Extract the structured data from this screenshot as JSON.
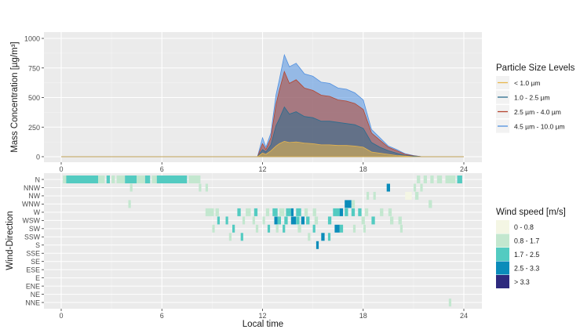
{
  "chart_data": [
    {
      "type": "area",
      "ylabel": "Mass Concentration [µg/m³]",
      "xlim": [
        0,
        24
      ],
      "ylim": [
        0,
        1000
      ],
      "x_ticks": [
        "0",
        "6",
        "12",
        "18",
        "24"
      ],
      "y_ticks": [
        "0",
        "250",
        "500",
        "750",
        "1000"
      ],
      "legend_title": "Particle Size Levels",
      "legend_position": "right",
      "series": [
        {
          "name": "< 1.0 µm",
          "color": "#e8b64c",
          "x": [
            0,
            11.7,
            12.0,
            12.2,
            12.5,
            12.8,
            13.0,
            13.3,
            13.6,
            14.0,
            14.5,
            15.0,
            15.5,
            16.0,
            16.5,
            17.0,
            17.5,
            18.0,
            18.5,
            19.0,
            19.5,
            20.0,
            20.5,
            21.0,
            21.5,
            24
          ],
          "values": [
            0,
            0,
            30,
            20,
            50,
            90,
            110,
            130,
            120,
            125,
            115,
            110,
            100,
            100,
            95,
            95,
            90,
            80,
            40,
            30,
            20,
            10,
            5,
            0,
            0,
            0
          ]
        },
        {
          "name": "1.0 - 2.5 µm",
          "color": "#2b6c8e",
          "x": [
            0,
            11.7,
            12.0,
            12.2,
            12.5,
            12.8,
            13.0,
            13.3,
            13.6,
            14.0,
            14.5,
            15.0,
            15.5,
            16.0,
            16.5,
            17.0,
            17.5,
            18.0,
            18.5,
            19.0,
            19.5,
            20.0,
            20.5,
            21.0,
            21.5,
            24
          ],
          "values": [
            0,
            0,
            60,
            40,
            100,
            260,
            320,
            420,
            360,
            380,
            340,
            330,
            300,
            300,
            290,
            280,
            270,
            240,
            120,
            80,
            50,
            30,
            10,
            5,
            0,
            0
          ]
        },
        {
          "name": "2.5 µm - 4.0 µm",
          "color": "#b5452f",
          "x": [
            0,
            11.7,
            12.0,
            12.2,
            12.5,
            12.8,
            13.0,
            13.3,
            13.6,
            14.0,
            14.5,
            15.0,
            15.5,
            16.0,
            16.5,
            17.0,
            17.5,
            18.0,
            18.5,
            19.0,
            19.5,
            20.0,
            20.5,
            21.0,
            21.5,
            24
          ],
          "values": [
            0,
            0,
            110,
            60,
            160,
            440,
            560,
            720,
            620,
            650,
            580,
            560,
            520,
            510,
            480,
            470,
            450,
            400,
            200,
            140,
            80,
            50,
            20,
            8,
            0,
            0
          ]
        },
        {
          "name": "4.5 µm - 10.0 µm",
          "color": "#4f8fe0",
          "x": [
            0,
            11.7,
            12.0,
            12.2,
            12.5,
            12.8,
            13.0,
            13.3,
            13.6,
            14.0,
            14.5,
            15.0,
            15.5,
            16.0,
            16.5,
            17.0,
            17.5,
            18.0,
            18.5,
            19.0,
            19.5,
            20.0,
            20.5,
            21.0,
            21.5,
            24
          ],
          "values": [
            0,
            0,
            160,
            80,
            200,
            520,
            650,
            860,
            760,
            790,
            700,
            680,
            630,
            620,
            580,
            570,
            540,
            480,
            230,
            160,
            90,
            60,
            25,
            10,
            0,
            0
          ]
        }
      ]
    },
    {
      "type": "heatmap",
      "xlabel": "Local time",
      "ylabel": "Wind-Direction",
      "xlim": [
        0,
        24
      ],
      "x_ticks": [
        "0",
        "6",
        "12",
        "18",
        "24"
      ],
      "categories": [
        "N",
        "NNW",
        "NW",
        "WNW",
        "W",
        "WSW",
        "SW",
        "SSW",
        "S",
        "SSE",
        "SE",
        "ESE",
        "E",
        "ENE",
        "NE",
        "NNE"
      ],
      "legend_title": "Wind speed [m/s]",
      "legend_position": "right",
      "legend_entries": [
        {
          "label": "0 - 0.8",
          "color": "#f4f6e4"
        },
        {
          "label": "0.8 - 1.7",
          "color": "#c3e7cf"
        },
        {
          "label": "1.7 - 2.5",
          "color": "#53cbc1"
        },
        {
          "label": "2.5 - 3.3",
          "color": "#0a8cba"
        },
        {
          "label": "> 3.3",
          "color": "#2e2a7e"
        }
      ],
      "cells": [
        {
          "direction": "N",
          "start": 0.1,
          "end": 0.3,
          "speed_class": "0.8 - 1.7"
        },
        {
          "direction": "N",
          "start": 0.3,
          "end": 2.2,
          "speed_class": "1.7 - 2.5"
        },
        {
          "direction": "N",
          "start": 2.2,
          "end": 2.6,
          "speed_class": "0.8 - 1.7"
        },
        {
          "direction": "N",
          "start": 2.7,
          "end": 2.9,
          "speed_class": "1.7 - 2.5"
        },
        {
          "direction": "N",
          "start": 3.0,
          "end": 3.2,
          "speed_class": "0.8 - 1.7"
        },
        {
          "direction": "N",
          "start": 3.3,
          "end": 3.8,
          "speed_class": "0.8 - 1.7"
        },
        {
          "direction": "N",
          "start": 3.8,
          "end": 4.5,
          "speed_class": "1.7 - 2.5"
        },
        {
          "direction": "N",
          "start": 4.5,
          "end": 5.0,
          "speed_class": "0.8 - 1.7"
        },
        {
          "direction": "N",
          "start": 5.0,
          "end": 5.3,
          "speed_class": "1.7 - 2.5"
        },
        {
          "direction": "N",
          "start": 5.4,
          "end": 5.7,
          "speed_class": "0.8 - 1.7"
        },
        {
          "direction": "N",
          "start": 5.7,
          "end": 7.5,
          "speed_class": "1.7 - 2.5"
        },
        {
          "direction": "N",
          "start": 7.6,
          "end": 8.3,
          "speed_class": "0.8 - 1.7"
        },
        {
          "direction": "N",
          "start": 21.2,
          "end": 21.4,
          "speed_class": "0.8 - 1.7"
        },
        {
          "direction": "N",
          "start": 21.6,
          "end": 21.8,
          "speed_class": "0.8 - 1.7"
        },
        {
          "direction": "N",
          "start": 22.0,
          "end": 22.2,
          "speed_class": "0.8 - 1.7"
        },
        {
          "direction": "N",
          "start": 22.4,
          "end": 22.7,
          "speed_class": "0.8 - 1.7"
        },
        {
          "direction": "N",
          "start": 22.9,
          "end": 23.5,
          "speed_class": "0.8 - 1.7"
        },
        {
          "direction": "N",
          "start": 23.6,
          "end": 23.9,
          "speed_class": "1.7 - 2.5"
        },
        {
          "direction": "NNW",
          "start": 4.1,
          "end": 4.25,
          "speed_class": "0.8 - 1.7"
        },
        {
          "direction": "NNW",
          "start": 8.2,
          "end": 8.35,
          "speed_class": "0.8 - 1.7"
        },
        {
          "direction": "NNW",
          "start": 8.6,
          "end": 8.75,
          "speed_class": "0.8 - 1.7"
        },
        {
          "direction": "NNW",
          "start": 19.4,
          "end": 19.6,
          "speed_class": "2.5 - 3.3"
        },
        {
          "direction": "NNW",
          "start": 21.0,
          "end": 21.15,
          "speed_class": "0.8 - 1.7"
        },
        {
          "direction": "NNW",
          "start": 21.4,
          "end": 21.55,
          "speed_class": "0.8 - 1.7"
        },
        {
          "direction": "NW",
          "start": 18.2,
          "end": 18.35,
          "speed_class": "0.8 - 1.7"
        },
        {
          "direction": "NW",
          "start": 18.6,
          "end": 18.75,
          "speed_class": "0.8 - 1.7"
        },
        {
          "direction": "NW",
          "start": 20.5,
          "end": 20.9,
          "speed_class": "0 - 0.8"
        },
        {
          "direction": "NW",
          "start": 21.1,
          "end": 21.3,
          "speed_class": "0.8 - 1.7"
        },
        {
          "direction": "WNW",
          "start": 4.0,
          "end": 4.15,
          "speed_class": "0.8 - 1.7"
        },
        {
          "direction": "WNW",
          "start": 16.9,
          "end": 17.3,
          "speed_class": "2.5 - 3.3"
        },
        {
          "direction": "WNW",
          "start": 17.3,
          "end": 17.5,
          "speed_class": "0.8 - 1.7"
        },
        {
          "direction": "WNW",
          "start": 21.9,
          "end": 22.1,
          "speed_class": "0.8 - 1.7"
        },
        {
          "direction": "W",
          "start": 8.6,
          "end": 9.1,
          "speed_class": "0.8 - 1.7"
        },
        {
          "direction": "W",
          "start": 9.2,
          "end": 9.4,
          "speed_class": "0.8 - 1.7"
        },
        {
          "direction": "W",
          "start": 10.5,
          "end": 10.7,
          "speed_class": "1.7 - 2.5"
        },
        {
          "direction": "W",
          "start": 11.0,
          "end": 11.3,
          "speed_class": "0.8 - 1.7"
        },
        {
          "direction": "W",
          "start": 11.5,
          "end": 11.7,
          "speed_class": "1.7 - 2.5"
        },
        {
          "direction": "W",
          "start": 12.2,
          "end": 12.4,
          "speed_class": "0.8 - 1.7"
        },
        {
          "direction": "W",
          "start": 12.6,
          "end": 12.9,
          "speed_class": "1.7 - 2.5"
        },
        {
          "direction": "W",
          "start": 13.0,
          "end": 13.3,
          "speed_class": "0.8 - 1.7"
        },
        {
          "direction": "W",
          "start": 13.4,
          "end": 13.7,
          "speed_class": "1.7 - 2.5"
        },
        {
          "direction": "W",
          "start": 13.7,
          "end": 13.85,
          "speed_class": "2.5 - 3.3"
        },
        {
          "direction": "W",
          "start": 14.0,
          "end": 14.3,
          "speed_class": "1.7 - 2.5"
        },
        {
          "direction": "W",
          "start": 14.5,
          "end": 14.7,
          "speed_class": "0.8 - 1.7"
        },
        {
          "direction": "W",
          "start": 15.0,
          "end": 15.2,
          "speed_class": "0.8 - 1.7"
        },
        {
          "direction": "W",
          "start": 16.2,
          "end": 16.6,
          "speed_class": "1.7 - 2.5"
        },
        {
          "direction": "W",
          "start": 16.6,
          "end": 16.8,
          "speed_class": "2.5 - 3.3"
        },
        {
          "direction": "W",
          "start": 16.9,
          "end": 17.1,
          "speed_class": "1.7 - 2.5"
        },
        {
          "direction": "W",
          "start": 17.3,
          "end": 17.5,
          "speed_class": "1.7 - 2.5"
        },
        {
          "direction": "W",
          "start": 17.7,
          "end": 17.9,
          "speed_class": "1.7 - 2.5"
        },
        {
          "direction": "W",
          "start": 18.1,
          "end": 18.3,
          "speed_class": "0.8 - 1.7"
        },
        {
          "direction": "W",
          "start": 19.0,
          "end": 19.2,
          "speed_class": "0.8 - 1.7"
        },
        {
          "direction": "W",
          "start": 19.5,
          "end": 19.7,
          "speed_class": "0.8 - 1.7"
        },
        {
          "direction": "WSW",
          "start": 9.3,
          "end": 9.45,
          "speed_class": "1.7 - 2.5"
        },
        {
          "direction": "WSW",
          "start": 9.8,
          "end": 9.95,
          "speed_class": "1.7 - 2.5"
        },
        {
          "direction": "WSW",
          "start": 10.8,
          "end": 10.95,
          "speed_class": "0.8 - 1.7"
        },
        {
          "direction": "WSW",
          "start": 11.4,
          "end": 11.55,
          "speed_class": "0.8 - 1.7"
        },
        {
          "direction": "WSW",
          "start": 12.0,
          "end": 12.15,
          "speed_class": "0.8 - 1.7"
        },
        {
          "direction": "WSW",
          "start": 12.7,
          "end": 12.9,
          "speed_class": "2.5 - 3.3"
        },
        {
          "direction": "WSW",
          "start": 12.9,
          "end": 13.1,
          "speed_class": "1.7 - 2.5"
        },
        {
          "direction": "WSW",
          "start": 13.3,
          "end": 13.5,
          "speed_class": "1.7 - 2.5"
        },
        {
          "direction": "WSW",
          "start": 13.7,
          "end": 14.0,
          "speed_class": "2.5 - 3.3"
        },
        {
          "direction": "WSW",
          "start": 14.0,
          "end": 14.2,
          "speed_class": "1.7 - 2.5"
        },
        {
          "direction": "WSW",
          "start": 14.3,
          "end": 14.5,
          "speed_class": "2.5 - 3.3"
        },
        {
          "direction": "WSW",
          "start": 14.6,
          "end": 14.8,
          "speed_class": "1.7 - 2.5"
        },
        {
          "direction": "WSW",
          "start": 15.1,
          "end": 15.3,
          "speed_class": "0.8 - 1.7"
        },
        {
          "direction": "WSW",
          "start": 15.9,
          "end": 16.1,
          "speed_class": "1.7 - 2.5"
        },
        {
          "direction": "WSW",
          "start": 17.9,
          "end": 18.1,
          "speed_class": "0.8 - 1.7"
        },
        {
          "direction": "WSW",
          "start": 18.5,
          "end": 18.7,
          "speed_class": "1.7 - 2.5"
        },
        {
          "direction": "WSW",
          "start": 19.6,
          "end": 19.8,
          "speed_class": "0.8 - 1.7"
        },
        {
          "direction": "WSW",
          "start": 20.1,
          "end": 20.3,
          "speed_class": "0.8 - 1.7"
        },
        {
          "direction": "SW",
          "start": 9.0,
          "end": 9.15,
          "speed_class": "0.8 - 1.7"
        },
        {
          "direction": "SW",
          "start": 10.2,
          "end": 10.35,
          "speed_class": "1.7 - 2.5"
        },
        {
          "direction": "SW",
          "start": 11.6,
          "end": 11.75,
          "speed_class": "0.8 - 1.7"
        },
        {
          "direction": "SW",
          "start": 12.3,
          "end": 12.45,
          "speed_class": "1.7 - 2.5"
        },
        {
          "direction": "SW",
          "start": 12.8,
          "end": 12.95,
          "speed_class": "0.8 - 1.7"
        },
        {
          "direction": "SW",
          "start": 13.2,
          "end": 13.35,
          "speed_class": "1.7 - 2.5"
        },
        {
          "direction": "SW",
          "start": 14.1,
          "end": 14.3,
          "speed_class": "0.8 - 1.7"
        },
        {
          "direction": "SW",
          "start": 15.0,
          "end": 15.15,
          "speed_class": "1.7 - 2.5"
        },
        {
          "direction": "SW",
          "start": 16.3,
          "end": 16.6,
          "speed_class": "2.5 - 3.3"
        },
        {
          "direction": "SW",
          "start": 16.6,
          "end": 16.8,
          "speed_class": "1.7 - 2.5"
        },
        {
          "direction": "SW",
          "start": 17.4,
          "end": 17.55,
          "speed_class": "0.8 - 1.7"
        },
        {
          "direction": "SW",
          "start": 18.0,
          "end": 18.15,
          "speed_class": "0.8 - 1.7"
        },
        {
          "direction": "SW",
          "start": 20.2,
          "end": 20.35,
          "speed_class": "0.8 - 1.7"
        },
        {
          "direction": "SSW",
          "start": 10.0,
          "end": 10.15,
          "speed_class": "0.8 - 1.7"
        },
        {
          "direction": "SSW",
          "start": 10.7,
          "end": 10.85,
          "speed_class": "1.7 - 2.5"
        },
        {
          "direction": "SSW",
          "start": 14.7,
          "end": 14.85,
          "speed_class": "0.8 - 1.7"
        },
        {
          "direction": "SSW",
          "start": 15.5,
          "end": 15.7,
          "speed_class": "2.5 - 3.3"
        },
        {
          "direction": "SSW",
          "start": 15.9,
          "end": 16.05,
          "speed_class": "1.7 - 2.5"
        },
        {
          "direction": "S",
          "start": 15.2,
          "end": 15.35,
          "speed_class": "2.5 - 3.3"
        },
        {
          "direction": "NNE",
          "start": 23.1,
          "end": 23.25,
          "speed_class": "0.8 - 1.7"
        }
      ]
    }
  ]
}
